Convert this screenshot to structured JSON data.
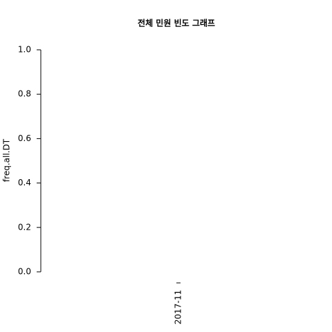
{
  "chart_data": {
    "type": "bar",
    "title": "전체 민원 빈도 그래프",
    "y_label": "freq.all.DT",
    "categories": [
      "2017-11"
    ],
    "values": [
      null
    ],
    "ylim": [
      0,
      1
    ],
    "yticks": [
      {
        "value": 0,
        "label": "0.0"
      },
      0.2,
      0.4,
      0.6,
      0.8,
      {
        "value": 1,
        "label": "1.0"
      }
    ]
  }
}
